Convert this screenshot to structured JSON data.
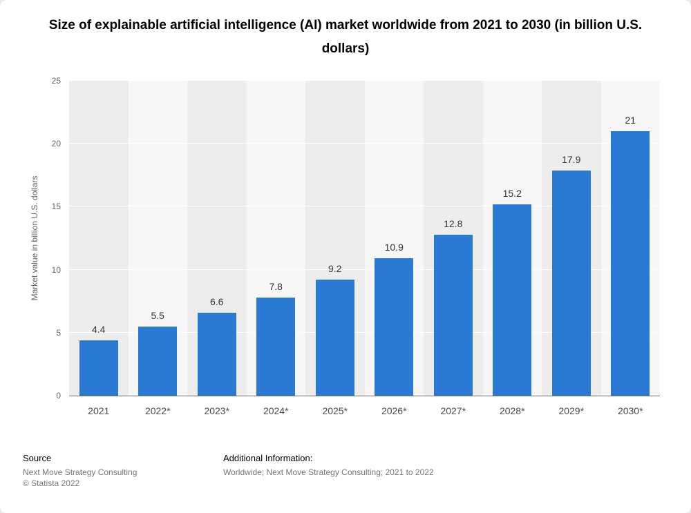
{
  "title": "Size of explainable artificial intelligence (AI) market worldwide from 2021 to 2030 (in billion U.S. dollars)",
  "chart_data": {
    "type": "bar",
    "title": "Size of explainable artificial intelligence (AI) market worldwide from 2021 to 2030 (in billion U.S. dollars)",
    "categories": [
      "2021",
      "2022*",
      "2023*",
      "2024*",
      "2025*",
      "2026*",
      "2027*",
      "2028*",
      "2029*",
      "2030*"
    ],
    "values": [
      4.4,
      5.5,
      6.6,
      7.8,
      9.2,
      10.9,
      12.8,
      15.2,
      17.9,
      21
    ],
    "value_labels": [
      "4.4",
      "5.5",
      "6.6",
      "7.8",
      "9.2",
      "10.9",
      "12.8",
      "15.2",
      "17.9",
      "21"
    ],
    "xlabel": "",
    "ylabel": "Market value in billion U.S. dollars",
    "ylim": [
      0,
      25
    ],
    "yticks": [
      0,
      5,
      10,
      15,
      20,
      25
    ],
    "bar_color": "#2a79d2",
    "grid": true,
    "legend": false
  },
  "footer": {
    "source_label": "Source",
    "source_name": "Next Move Strategy Consulting",
    "copyright": "© Statista 2022",
    "additional_label": "Additional Information:",
    "additional_text": "Worldwide; Next Move Strategy Consulting; 2021 to 2022"
  }
}
